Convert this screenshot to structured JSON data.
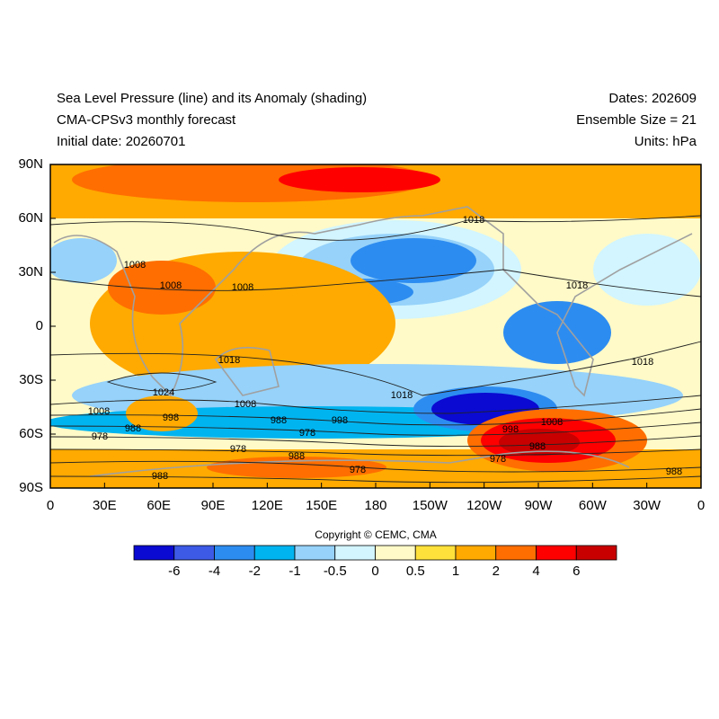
{
  "header": {
    "left": [
      "Sea Level Pressure (line) and its Anomaly (shading)",
      "CMA-CPSv3 monthly forecast",
      "Initial date: 20260701"
    ],
    "right": [
      "Dates: 202609",
      "Ensemble Size = 21",
      "Units: hPa"
    ]
  },
  "map": {
    "xlim": [
      0,
      360
    ],
    "ylim": [
      -90,
      90
    ],
    "xticks": [
      0,
      {
        "value": 30,
        "label": "30E"
      },
      {
        "value": 60,
        "label": "60E"
      },
      {
        "value": 90,
        "label": "90E"
      },
      {
        "value": 120,
        "label": "120E"
      },
      {
        "value": 150,
        "label": "150E"
      },
      180,
      {
        "value": 210,
        "label": "150W"
      },
      {
        "value": 240,
        "label": "120W"
      },
      {
        "value": 270,
        "label": "90W"
      },
      {
        "value": 300,
        "label": "60W"
      },
      {
        "value": 330,
        "label": "30W"
      },
      {
        "value": 360,
        "label": "0"
      }
    ],
    "yticks": [
      {
        "value": 90,
        "label": "90N"
      },
      {
        "value": 60,
        "label": "60N"
      },
      {
        "value": 30,
        "label": "30N"
      },
      0,
      {
        "value": -30,
        "label": "30S"
      },
      {
        "value": -60,
        "label": "60S"
      },
      {
        "value": -90,
        "label": "90S"
      }
    ],
    "contour_labels": [
      1018,
      1008,
      1008,
      1008,
      1018,
      1018,
      1018,
      1024,
      1018,
      1008,
      1008,
      998,
      988,
      998,
      978,
      1008,
      998,
      988,
      978,
      988,
      978,
      988,
      978,
      978,
      988,
      988
    ]
  },
  "copyright": "Copyright © CEMC, CMA",
  "colorbar": {
    "colors": [
      "#0a0ad2",
      "#3c5ae6",
      "#2d8cf0",
      "#00b4f0",
      "#96d2fa",
      "#d2f5ff",
      "#fffac8",
      "#ffe13c",
      "#ffaa00",
      "#ff6e00",
      "#ff0000",
      "#c80000"
    ],
    "ticks": [
      -6,
      -4,
      -2,
      -1,
      -0.5,
      0,
      0.5,
      1,
      2,
      4,
      6
    ]
  }
}
